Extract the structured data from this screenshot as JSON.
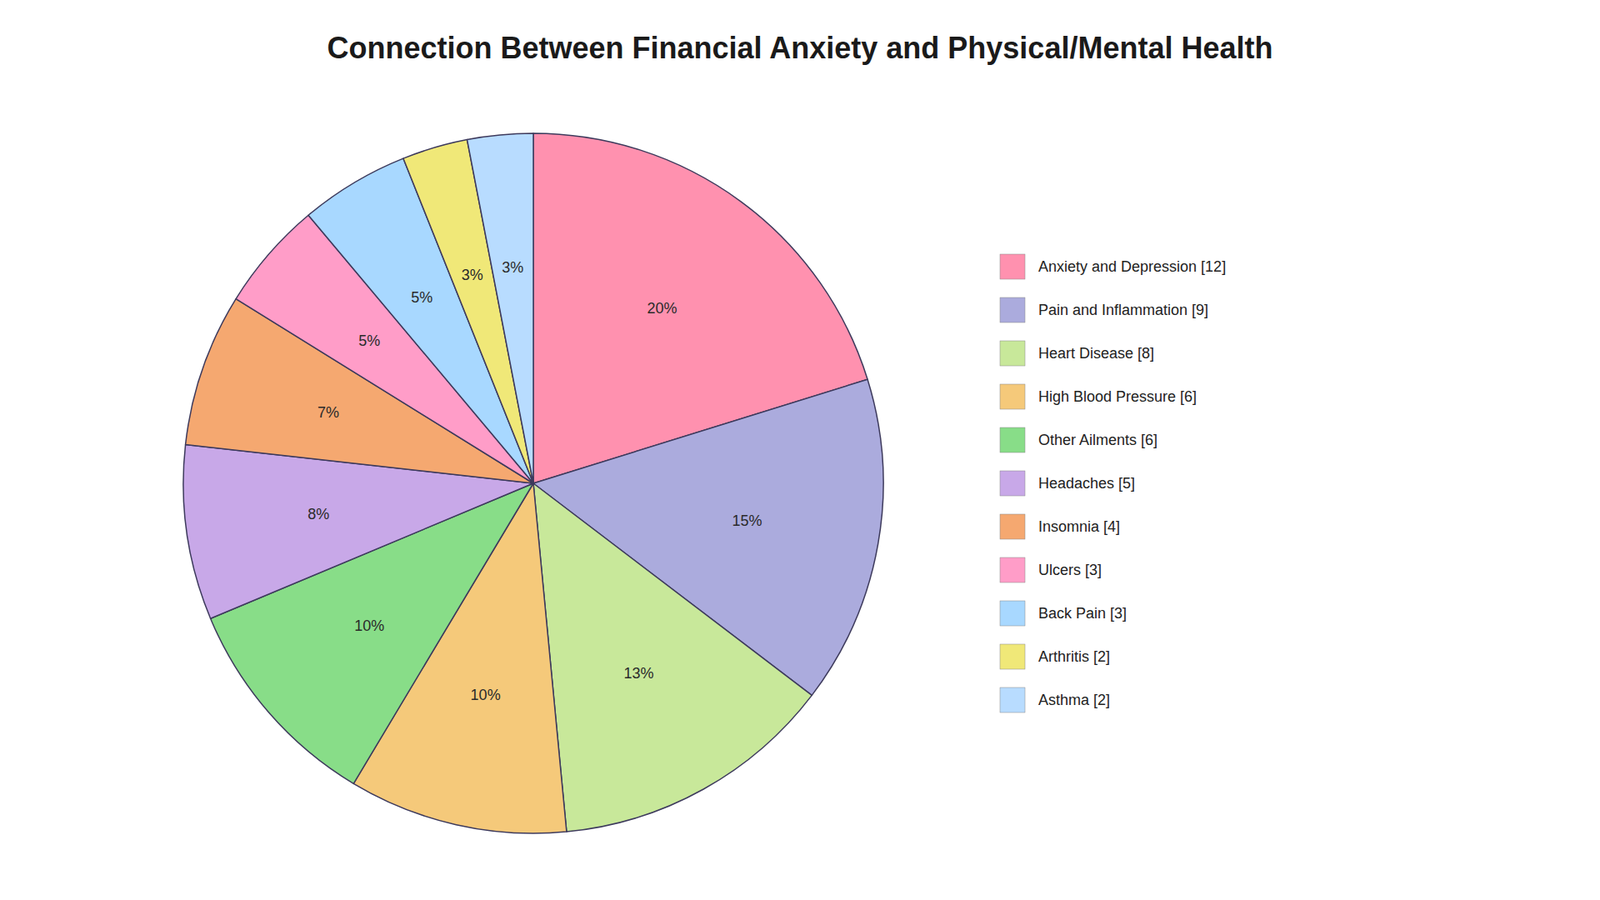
{
  "chart_data": {
    "type": "pie",
    "title": "Connection Between Financial Anxiety and Physical/Mental Health",
    "categories": [
      "Anxiety and Depression [12]",
      "Pain and Inflammation [9]",
      "Heart Disease [8]",
      "High Blood Pressure [6]",
      "Other Ailments [6]",
      "Headaches [5]",
      "Insomnia [4]",
      "Ulcers [3]",
      "Back Pain [3]",
      "Arthritis [2]",
      "Asthma [2]"
    ],
    "values": [
      20,
      15,
      13,
      10,
      10,
      8,
      7,
      5,
      5,
      3,
      3
    ],
    "value_labels": [
      "20%",
      "15%",
      "13%",
      "10%",
      "10%",
      "8%",
      "7%",
      "5%",
      "5%",
      "3%",
      "3%"
    ],
    "colors": [
      "#FF91AF",
      "#ABABDD",
      "#C8E89A",
      "#F5C97A",
      "#88DD88",
      "#C8A8E8",
      "#F5A870",
      "#FF9DC8",
      "#A8D8FF",
      "#F0E878",
      "#B8DCFF"
    ],
    "data_labels": true,
    "legend": "right"
  }
}
